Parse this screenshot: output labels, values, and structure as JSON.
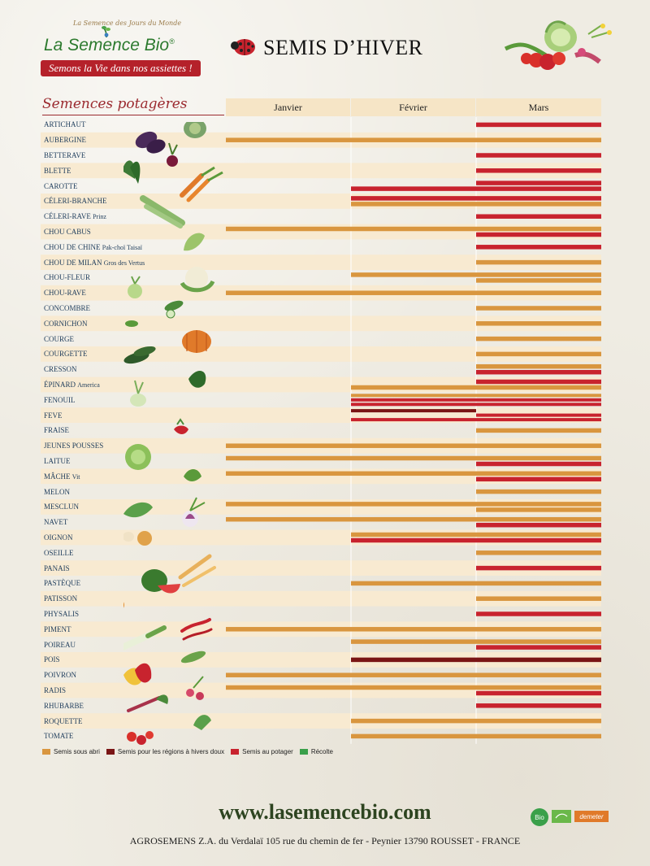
{
  "brand": {
    "tagline_top": "La Semence des Jours du Monde",
    "name": "La Semence Bio",
    "registered": "®",
    "ribbon": "Semons la Vie dans nos assiettes !"
  },
  "header": {
    "title": "SEMIS D’HIVER"
  },
  "section_label": "Semences potagères",
  "colors": {
    "abri": "#d9963f",
    "doux": "#7a1515",
    "potager": "#c8232e",
    "recolte": "#3aa04a",
    "row_stripe": "#f8ead1",
    "header_bg": "#f6e5c6"
  },
  "legend": [
    {
      "key": "abri",
      "label": "Semis sous abri"
    },
    {
      "key": "doux",
      "label": "Semis pour les régions à hivers doux"
    },
    {
      "key": "potager",
      "label": "Semis au potager"
    },
    {
      "key": "recolte",
      "label": "Récolte"
    }
  ],
  "chart_data": {
    "type": "table",
    "columns": [
      "Janvier",
      "Février",
      "Mars"
    ],
    "units": "fraction of the January–March period (0 = start of January, 3 = end of March)",
    "rows": [
      {
        "name": "ARTICHAUT",
        "sub": "",
        "bars": [
          {
            "type": "potager",
            "start": 2.0,
            "end": 3.0
          }
        ]
      },
      {
        "name": "AUBERGINE",
        "sub": "",
        "bars": [
          {
            "type": "abri",
            "start": 0.0,
            "end": 3.0
          }
        ]
      },
      {
        "name": "BETTERAVE",
        "sub": "",
        "bars": [
          {
            "type": "potager",
            "start": 2.0,
            "end": 3.0
          }
        ]
      },
      {
        "name": "BLETTE",
        "sub": "",
        "bars": [
          {
            "type": "potager",
            "start": 2.0,
            "end": 3.0
          }
        ]
      },
      {
        "name": "CAROTTE",
        "sub": "",
        "bars": [
          {
            "type": "potager",
            "start": 2.0,
            "end": 3.0
          },
          {
            "type": "potager",
            "start": 1.0,
            "end": 3.0
          }
        ]
      },
      {
        "name": "CÉLERI-BRANCHE",
        "sub": "",
        "bars": [
          {
            "type": "potager",
            "start": 1.0,
            "end": 3.0
          },
          {
            "type": "abri",
            "start": 1.0,
            "end": 3.0
          }
        ]
      },
      {
        "name": "CÉLERI-RAVE",
        "sub": "Prinz",
        "bars": [
          {
            "type": "potager",
            "start": 2.0,
            "end": 3.0
          }
        ]
      },
      {
        "name": "CHOU CABUS",
        "sub": "",
        "bars": [
          {
            "type": "abri",
            "start": 0.0,
            "end": 3.0
          },
          {
            "type": "potager",
            "start": 2.0,
            "end": 3.0
          }
        ]
      },
      {
        "name": "CHOU DE CHINE",
        "sub": "Pak-choï Taisaï",
        "bars": [
          {
            "type": "potager",
            "start": 2.0,
            "end": 3.0
          }
        ]
      },
      {
        "name": "CHOU DE MILAN",
        "sub": "Gros des Vertus",
        "bars": [
          {
            "type": "abri",
            "start": 2.0,
            "end": 3.0
          }
        ]
      },
      {
        "name": "CHOU-FLEUR",
        "sub": "",
        "bars": [
          {
            "type": "abri",
            "start": 1.0,
            "end": 3.0
          },
          {
            "type": "abri",
            "start": 2.0,
            "end": 3.0
          }
        ]
      },
      {
        "name": "CHOU-RAVE",
        "sub": "",
        "bars": [
          {
            "type": "abri",
            "start": 0.0,
            "end": 3.0
          }
        ]
      },
      {
        "name": "CONCOMBRE",
        "sub": "",
        "bars": [
          {
            "type": "abri",
            "start": 2.0,
            "end": 3.0
          }
        ]
      },
      {
        "name": "CORNICHON",
        "sub": "",
        "bars": [
          {
            "type": "abri",
            "start": 2.0,
            "end": 3.0
          }
        ]
      },
      {
        "name": "COURGE",
        "sub": "",
        "bars": [
          {
            "type": "abri",
            "start": 2.0,
            "end": 3.0
          }
        ]
      },
      {
        "name": "COURGETTE",
        "sub": "",
        "bars": [
          {
            "type": "abri",
            "start": 2.0,
            "end": 3.0
          }
        ]
      },
      {
        "name": "CRESSON",
        "sub": "",
        "bars": [
          {
            "type": "abri",
            "start": 2.0,
            "end": 3.0
          },
          {
            "type": "potager",
            "start": 2.0,
            "end": 3.0
          }
        ]
      },
      {
        "name": "ÉPINARD",
        "sub": "America",
        "bars": [
          {
            "type": "potager",
            "start": 2.0,
            "end": 3.0
          },
          {
            "type": "abri",
            "start": 1.0,
            "end": 3.0
          }
        ]
      },
      {
        "name": "FENOUIL",
        "sub": "",
        "bars": [
          {
            "type": "abri",
            "start": 1.0,
            "end": 3.0
          },
          {
            "type": "potager",
            "start": 1.0,
            "end": 3.0
          },
          {
            "type": "potager",
            "start": 1.0,
            "end": 3.0
          }
        ]
      },
      {
        "name": "FEVE",
        "sub": "",
        "bars": [
          {
            "type": "doux",
            "start": 1.0,
            "end": 2.0
          },
          {
            "type": "potager",
            "start": 2.0,
            "end": 3.0
          },
          {
            "type": "potager",
            "start": 1.0,
            "end": 3.0
          }
        ]
      },
      {
        "name": "FRAISE",
        "sub": "",
        "bars": [
          {
            "type": "abri",
            "start": 2.0,
            "end": 3.0
          }
        ]
      },
      {
        "name": "JEUNES POUSSES",
        "sub": "",
        "bars": [
          {
            "type": "abri",
            "start": 0.0,
            "end": 3.0
          }
        ]
      },
      {
        "name": "LAITUE",
        "sub": "",
        "bars": [
          {
            "type": "abri",
            "start": 0.0,
            "end": 3.0
          },
          {
            "type": "potager",
            "start": 2.0,
            "end": 3.0
          }
        ]
      },
      {
        "name": "MÂCHE",
        "sub": "Vit",
        "bars": [
          {
            "type": "abri",
            "start": 0.0,
            "end": 3.0
          },
          {
            "type": "potager",
            "start": 2.0,
            "end": 3.0
          }
        ]
      },
      {
        "name": "MELON",
        "sub": "",
        "bars": [
          {
            "type": "abri",
            "start": 2.0,
            "end": 3.0
          }
        ]
      },
      {
        "name": "MESCLUN",
        "sub": "",
        "bars": [
          {
            "type": "abri",
            "start": 0.0,
            "end": 3.0
          },
          {
            "type": "abri",
            "start": 2.0,
            "end": 3.0
          }
        ]
      },
      {
        "name": "NAVET",
        "sub": "",
        "bars": [
          {
            "type": "abri",
            "start": 0.0,
            "end": 3.0
          },
          {
            "type": "potager",
            "start": 2.0,
            "end": 3.0
          }
        ]
      },
      {
        "name": "OIGNON",
        "sub": "",
        "bars": [
          {
            "type": "abri",
            "start": 1.0,
            "end": 3.0
          },
          {
            "type": "potager",
            "start": 1.0,
            "end": 3.0
          }
        ]
      },
      {
        "name": "OSEILLE",
        "sub": "",
        "bars": [
          {
            "type": "abri",
            "start": 2.0,
            "end": 3.0
          }
        ]
      },
      {
        "name": "PANAIS",
        "sub": "",
        "bars": [
          {
            "type": "potager",
            "start": 2.0,
            "end": 3.0
          }
        ]
      },
      {
        "name": "PASTÈQUE",
        "sub": "",
        "bars": [
          {
            "type": "abri",
            "start": 1.0,
            "end": 3.0
          }
        ]
      },
      {
        "name": "PATISSON",
        "sub": "",
        "bars": [
          {
            "type": "abri",
            "start": 2.0,
            "end": 3.0
          }
        ]
      },
      {
        "name": "PHYSALIS",
        "sub": "",
        "bars": [
          {
            "type": "potager",
            "start": 2.0,
            "end": 3.0
          }
        ]
      },
      {
        "name": "PIMENT",
        "sub": "",
        "bars": [
          {
            "type": "abri",
            "start": 0.0,
            "end": 3.0
          }
        ]
      },
      {
        "name": "POIREAU",
        "sub": "",
        "bars": [
          {
            "type": "abri",
            "start": 1.0,
            "end": 3.0
          },
          {
            "type": "potager",
            "start": 2.0,
            "end": 3.0
          }
        ]
      },
      {
        "name": "POIS",
        "sub": "",
        "bars": [
          {
            "type": "doux",
            "start": 1.0,
            "end": 3.0
          }
        ]
      },
      {
        "name": "POIVRON",
        "sub": "",
        "bars": [
          {
            "type": "abri",
            "start": 0.0,
            "end": 3.0
          }
        ]
      },
      {
        "name": "RADIS",
        "sub": "",
        "bars": [
          {
            "type": "abri",
            "start": 0.0,
            "end": 3.0
          },
          {
            "type": "potager",
            "start": 2.0,
            "end": 3.0
          }
        ]
      },
      {
        "name": "RHUBARBE",
        "sub": "",
        "bars": [
          {
            "type": "potager",
            "start": 2.0,
            "end": 3.0
          }
        ]
      },
      {
        "name": "ROQUETTE",
        "sub": "",
        "bars": [
          {
            "type": "abri",
            "start": 1.0,
            "end": 3.0
          }
        ]
      },
      {
        "name": "TOMATE",
        "sub": "",
        "bars": [
          {
            "type": "abri",
            "start": 1.0,
            "end": 3.0
          }
        ]
      }
    ]
  },
  "footer": {
    "website": "www.lasemencebio.com",
    "address": "AGROSEMENS Z.A. du Verdalaï 105 rue du chemin de fer - Peynier 13790 ROUSSET - FRANCE",
    "cert_labels": [
      "Bio",
      "demeter"
    ]
  },
  "icons": [
    "ladybug-icon",
    "sprout-icon",
    "eggplant-icon",
    "beet-icon",
    "carrot-icon",
    "cabbage-icon",
    "pumpkin-icon",
    "watermelon-icon",
    "pepper-icon",
    "tomato-icon"
  ]
}
